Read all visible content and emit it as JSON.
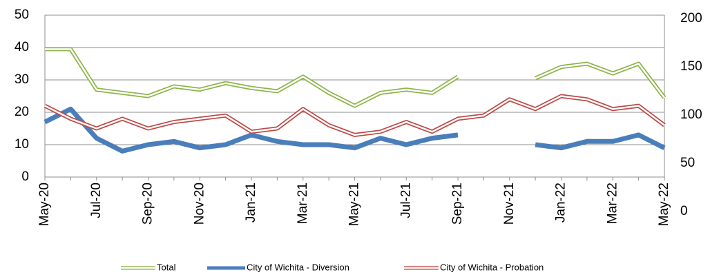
{
  "chart_data": {
    "type": "line",
    "categories": [
      "May-20",
      null,
      "Jul-20",
      null,
      "Sep-20",
      null,
      "Nov-20",
      null,
      "Jan-21",
      null,
      "Mar-21",
      null,
      "May-21",
      null,
      "Jul-21",
      null,
      "Sep-21",
      null,
      "Nov-21",
      null,
      "Jan-22",
      null,
      "Mar-22",
      null,
      "May-22"
    ],
    "series": [
      {
        "name": "Total",
        "color": "#8db54a",
        "style": "double",
        "values": [
          39.5,
          39.5,
          27,
          26,
          25,
          28,
          27,
          29,
          27.5,
          26.5,
          31,
          26,
          22,
          26,
          27,
          26,
          31,
          null,
          null,
          30.5,
          34,
          35,
          32,
          35,
          24.5
        ]
      },
      {
        "name": "City of Wichita - Diversion",
        "color": "#4a7ebb",
        "style": "solid",
        "values": [
          17,
          21,
          12,
          8,
          10,
          11,
          9,
          10,
          13,
          11,
          10,
          10,
          9,
          12,
          10,
          12,
          13,
          null,
          null,
          10,
          9,
          11,
          11,
          13,
          9
        ]
      },
      {
        "name": "City of Wichita - Probation",
        "color": "#be4b48",
        "style": "double",
        "values": [
          22,
          18,
          15,
          18,
          15,
          17,
          18,
          19,
          14,
          15,
          21,
          16,
          13,
          14,
          17,
          14,
          18,
          19,
          24,
          21,
          25,
          24,
          21,
          22,
          16
        ]
      }
    ],
    "ylim": [
      0,
      50
    ],
    "yticks": [
      0,
      10,
      20,
      30,
      40,
      50
    ],
    "y2lim": [
      0,
      200
    ],
    "y2ticks": [
      0,
      50,
      100,
      150,
      200
    ],
    "grid": true,
    "legend": "bottom"
  }
}
